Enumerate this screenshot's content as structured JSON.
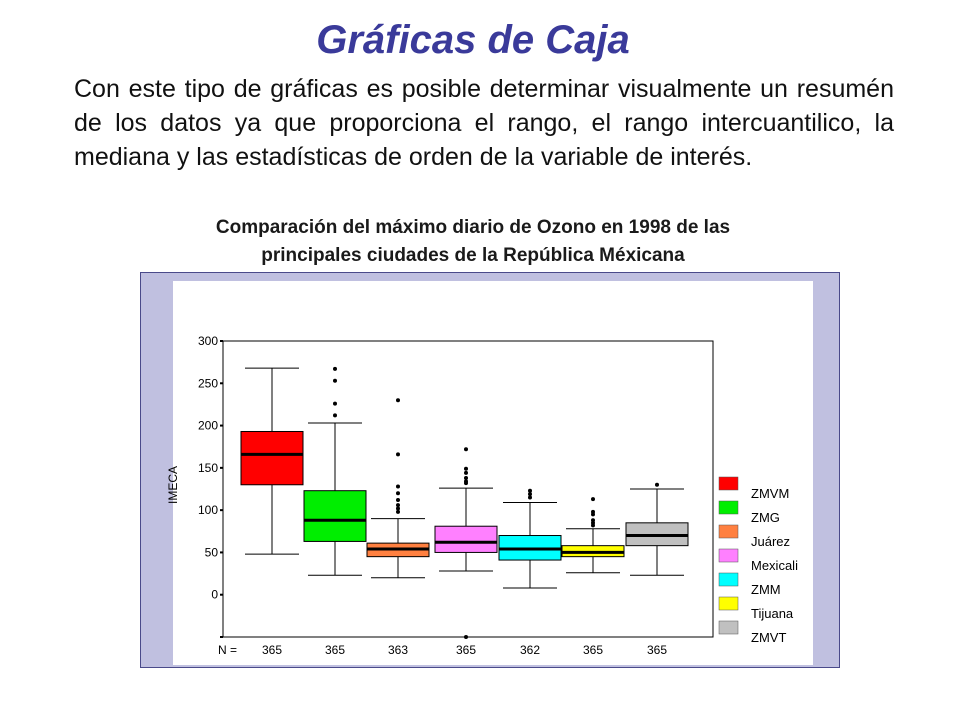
{
  "slide": {
    "title": "Gráficas de Caja",
    "body": "Con este tipo de gráficas es posible determinar visualmente un resumén de los datos ya que proporciona el rango, el rango intercuantilico, la mediana y las estadísticas de orden de la variable de interés."
  },
  "chart_data": {
    "type": "boxplot",
    "title_line1": "Comparación del máximo diario de Ozono en 1998 de las",
    "title_line2": "principales ciudades de la República Méxicana",
    "ylabel": "IMECA",
    "ylim": [
      -50,
      300
    ],
    "yticks": [
      "300",
      "250",
      "200",
      "150",
      "100",
      "50",
      "0"
    ],
    "n_label": "N =",
    "grid": false,
    "legend_position": "right",
    "series": [
      {
        "name": "ZMVM",
        "color": "#ff0000",
        "n": "365",
        "whisker_low": 48,
        "q1": 130,
        "median": 166,
        "q3": 193,
        "whisker_high": 268,
        "outliers": []
      },
      {
        "name": "ZMG",
        "color": "#00ee00",
        "n": "365",
        "whisker_low": 23,
        "q1": 63,
        "median": 88,
        "q3": 123,
        "whisker_high": 203,
        "outliers": [
          212,
          226,
          253,
          267
        ]
      },
      {
        "name": "Juárez",
        "color": "#ff8040",
        "n": "363",
        "whisker_low": 20,
        "q1": 45,
        "median": 54,
        "q3": 61,
        "whisker_high": 90,
        "outliers": [
          98,
          102,
          106,
          112,
          120,
          128,
          166,
          230
        ]
      },
      {
        "name": "Mexicali",
        "color": "#ff80ff",
        "n": "365",
        "whisker_low": 28,
        "q1": 50,
        "median": 62,
        "q3": 81,
        "whisker_high": 126,
        "outliers": [
          132,
          134,
          138,
          144,
          149,
          172,
          -50
        ]
      },
      {
        "name": "ZMM",
        "color": "#00ffff",
        "n": "362",
        "whisker_low": 8,
        "q1": 41,
        "median": 54,
        "q3": 70,
        "whisker_high": 109,
        "outliers": [
          115,
          119,
          123
        ]
      },
      {
        "name": "Tijuana",
        "color": "#ffff00",
        "n": "365",
        "whisker_low": 26,
        "q1": 45,
        "median": 50,
        "q3": 58,
        "whisker_high": 78,
        "outliers": [
          82,
          85,
          88,
          95,
          98,
          113
        ]
      },
      {
        "name": "ZMVT",
        "color": "#c0c0c0",
        "n": "365",
        "whisker_low": 23,
        "q1": 58,
        "median": 70,
        "q3": 85,
        "whisker_high": 125,
        "outliers": [
          130
        ]
      }
    ]
  }
}
